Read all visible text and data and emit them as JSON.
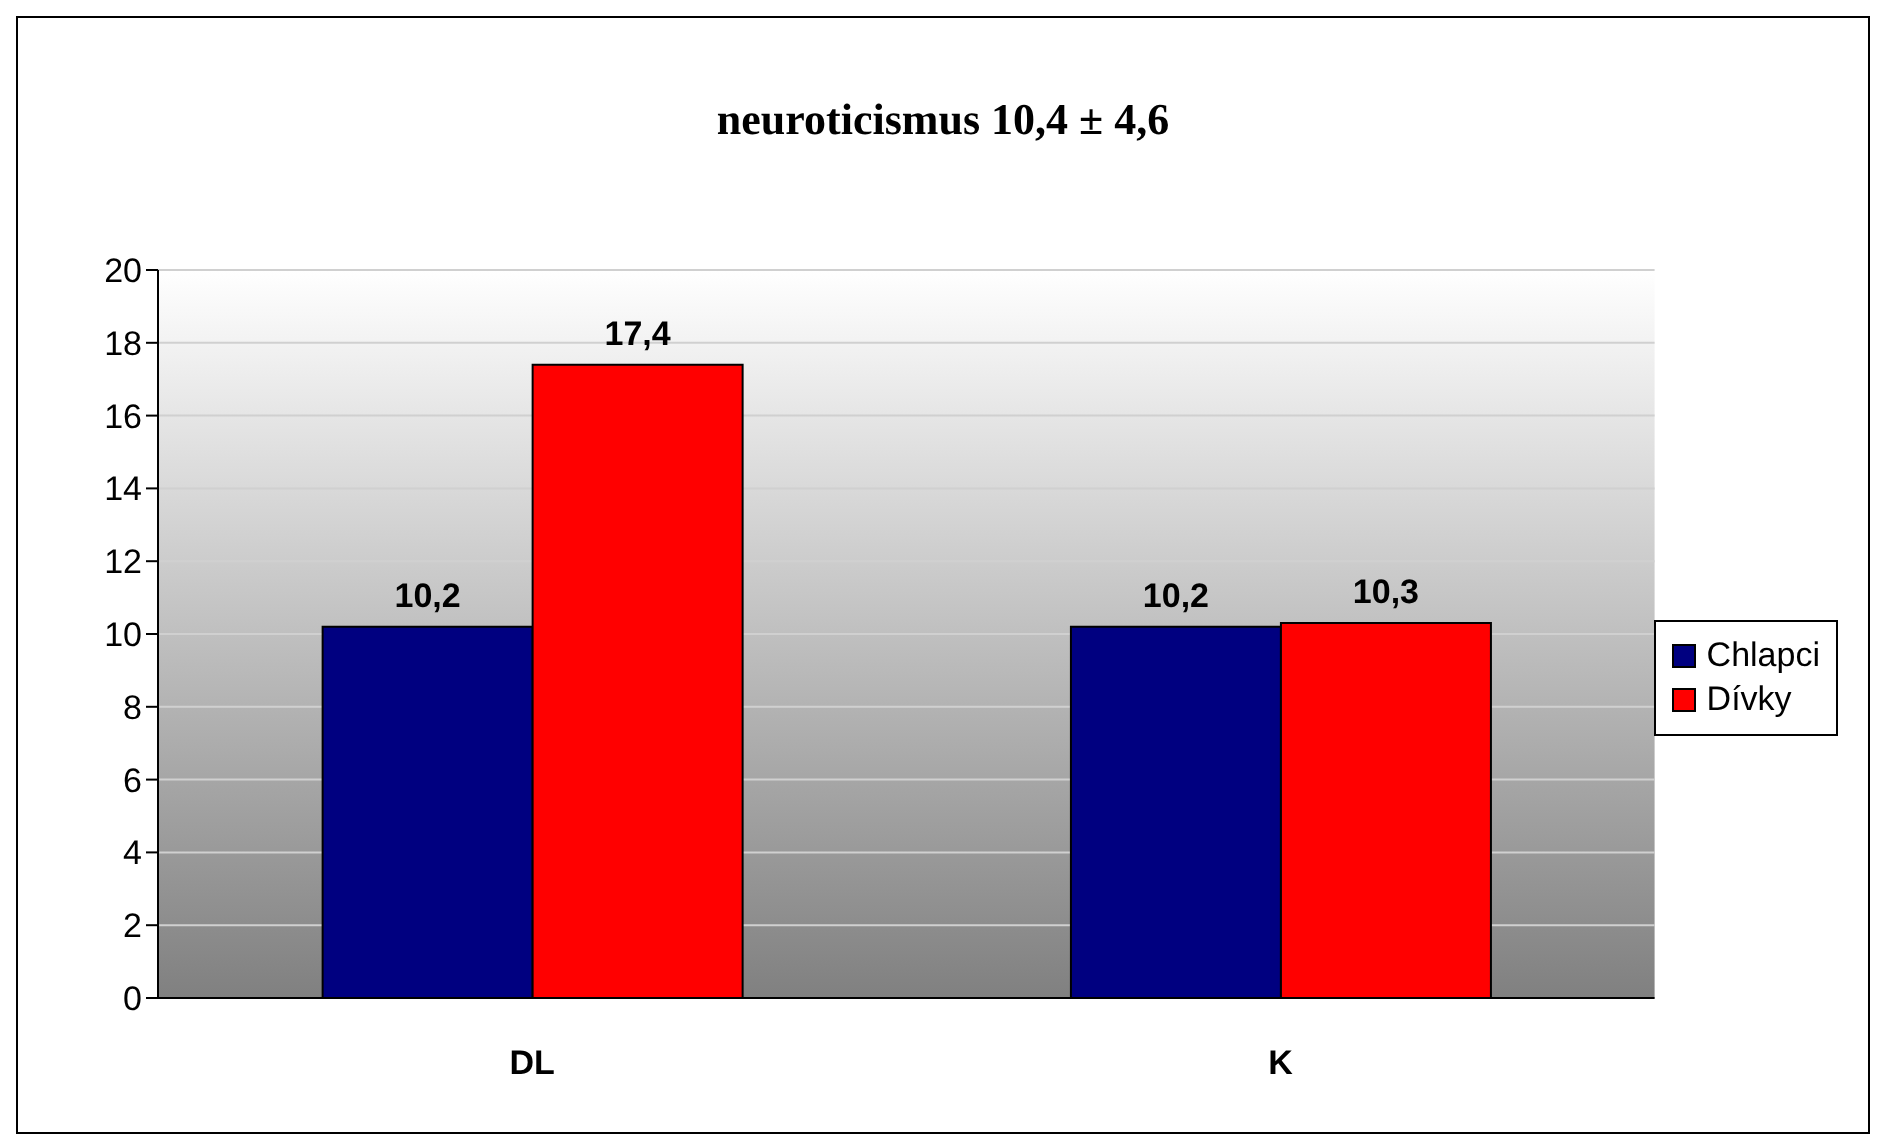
{
  "chart_data": {
    "type": "bar",
    "title": "neuroticismus 10,4 ± 4,6",
    "categories": [
      "DL",
      "K"
    ],
    "series": [
      {
        "name": "Chlapci",
        "color": "#000080",
        "values": [
          10.2,
          10.2
        ],
        "value_labels": [
          "10,2",
          "10,2"
        ]
      },
      {
        "name": "Dívky",
        "color": "#ff0000",
        "values": [
          17.4,
          10.3
        ],
        "value_labels": [
          "17,4",
          "10,3"
        ]
      }
    ],
    "ylim": [
      0,
      20
    ],
    "yticks": [
      0,
      2,
      4,
      6,
      8,
      10,
      12,
      14,
      16,
      18,
      20
    ],
    "grid": "y",
    "legend": "right"
  }
}
